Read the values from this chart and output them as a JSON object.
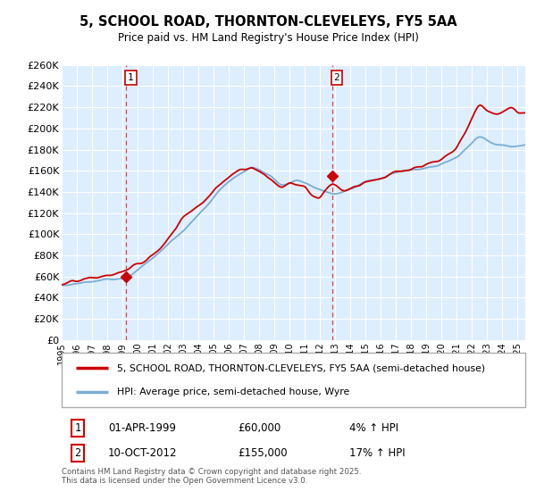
{
  "title": "5, SCHOOL ROAD, THORNTON-CLEVELEYS, FY5 5AA",
  "subtitle": "Price paid vs. HM Land Registry's House Price Index (HPI)",
  "ylim": [
    0,
    260000
  ],
  "yticks": [
    0,
    20000,
    40000,
    60000,
    80000,
    100000,
    120000,
    140000,
    160000,
    180000,
    200000,
    220000,
    240000,
    260000
  ],
  "ytick_labels": [
    "£0",
    "£20K",
    "£40K",
    "£60K",
    "£80K",
    "£100K",
    "£120K",
    "£140K",
    "£160K",
    "£180K",
    "£200K",
    "£220K",
    "£240K",
    "£260K"
  ],
  "xlim_start": 1995.0,
  "xlim_end": 2025.5,
  "plot_bg_color": "#ddeeff",
  "grid_color": "#ffffff",
  "red_line_color": "#cc0000",
  "blue_line_color": "#7aadd4",
  "vline_color": "#dd4444",
  "marker_color": "#cc0000",
  "transaction1_year": 1999.25,
  "transaction1_price": 60000,
  "transaction2_year": 2012.78,
  "transaction2_price": 155000,
  "legend_line1": "5, SCHOOL ROAD, THORNTON-CLEVELEYS, FY5 5AA (semi-detached house)",
  "legend_line2": "HPI: Average price, semi-detached house, Wyre",
  "footnote": "Contains HM Land Registry data © Crown copyright and database right 2025.\nThis data is licensed under the Open Government Licence v3.0.",
  "table_row1": [
    "1",
    "01-APR-1999",
    "£60,000",
    "4% ↑ HPI"
  ],
  "table_row2": [
    "2",
    "10-OCT-2012",
    "£155,000",
    "17% ↑ HPI"
  ]
}
